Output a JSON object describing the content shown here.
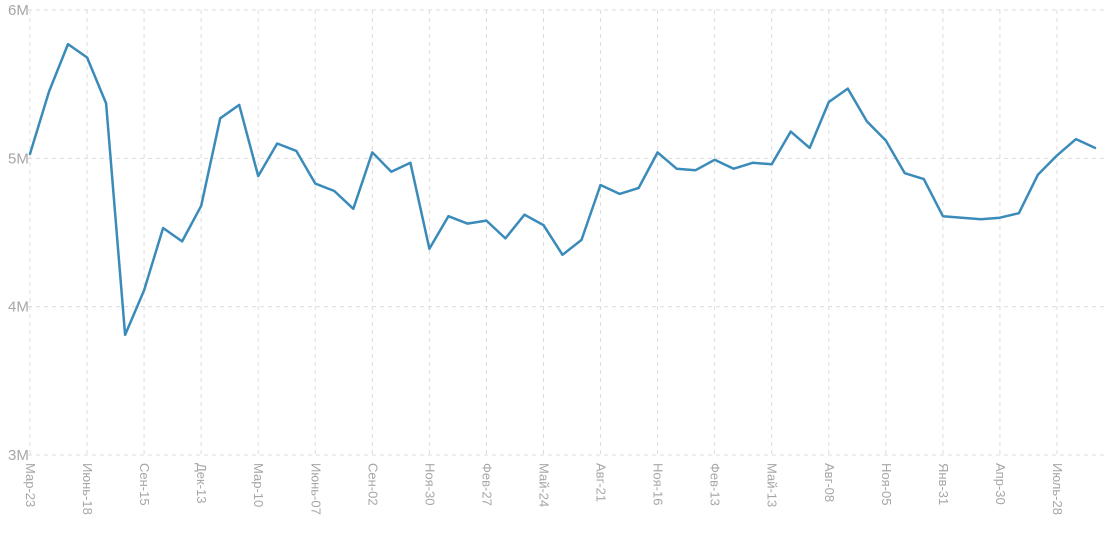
{
  "chart_data": {
    "type": "line",
    "unit": "M",
    "ylim": [
      3,
      6
    ],
    "y_ticks": [
      {
        "value": 6,
        "label": "6M"
      },
      {
        "value": 5,
        "label": "5M"
      },
      {
        "value": 4,
        "label": "4M"
      },
      {
        "value": 3,
        "label": "3M"
      }
    ],
    "x_tick_labels": [
      "Мар-23",
      "Июнь-18",
      "Сен-15",
      "Дек-13",
      "Мар-10",
      "Июнь-07",
      "Сен-02",
      "Ноя-30",
      "Фев-27",
      "Май-24",
      "Авг-21",
      "Ноя-16",
      "Фев-13",
      "Май-13",
      "Авг-08",
      "Ноя-05",
      "Янв-31",
      "Апр-30",
      "Июль-28"
    ],
    "points_per_x_tick": 3,
    "series": [
      {
        "name": "value",
        "values_millions": [
          5.03,
          5.45,
          5.77,
          5.68,
          5.37,
          3.81,
          4.11,
          4.53,
          4.44,
          4.68,
          5.27,
          5.36,
          4.88,
          5.1,
          5.05,
          4.83,
          4.78,
          4.66,
          5.04,
          4.91,
          4.97,
          4.39,
          4.61,
          4.56,
          4.58,
          4.46,
          4.62,
          4.55,
          4.35,
          4.45,
          4.82,
          4.76,
          4.8,
          5.04,
          4.93,
          4.92,
          4.99,
          4.93,
          4.97,
          4.96,
          5.18,
          5.07,
          5.38,
          5.47,
          5.25,
          5.12,
          4.9,
          4.86,
          4.61,
          4.6,
          4.59,
          4.6,
          4.63,
          4.89,
          5.02,
          5.13,
          5.07
        ]
      }
    ],
    "colors": {
      "line": "#3a8bba",
      "grid": "#dcdcdc",
      "tick_label": "#a6a6a6",
      "background": "#ffffff"
    },
    "grid": {
      "horizontal": true,
      "vertical": true,
      "style": "dashed"
    },
    "legend": "none"
  }
}
